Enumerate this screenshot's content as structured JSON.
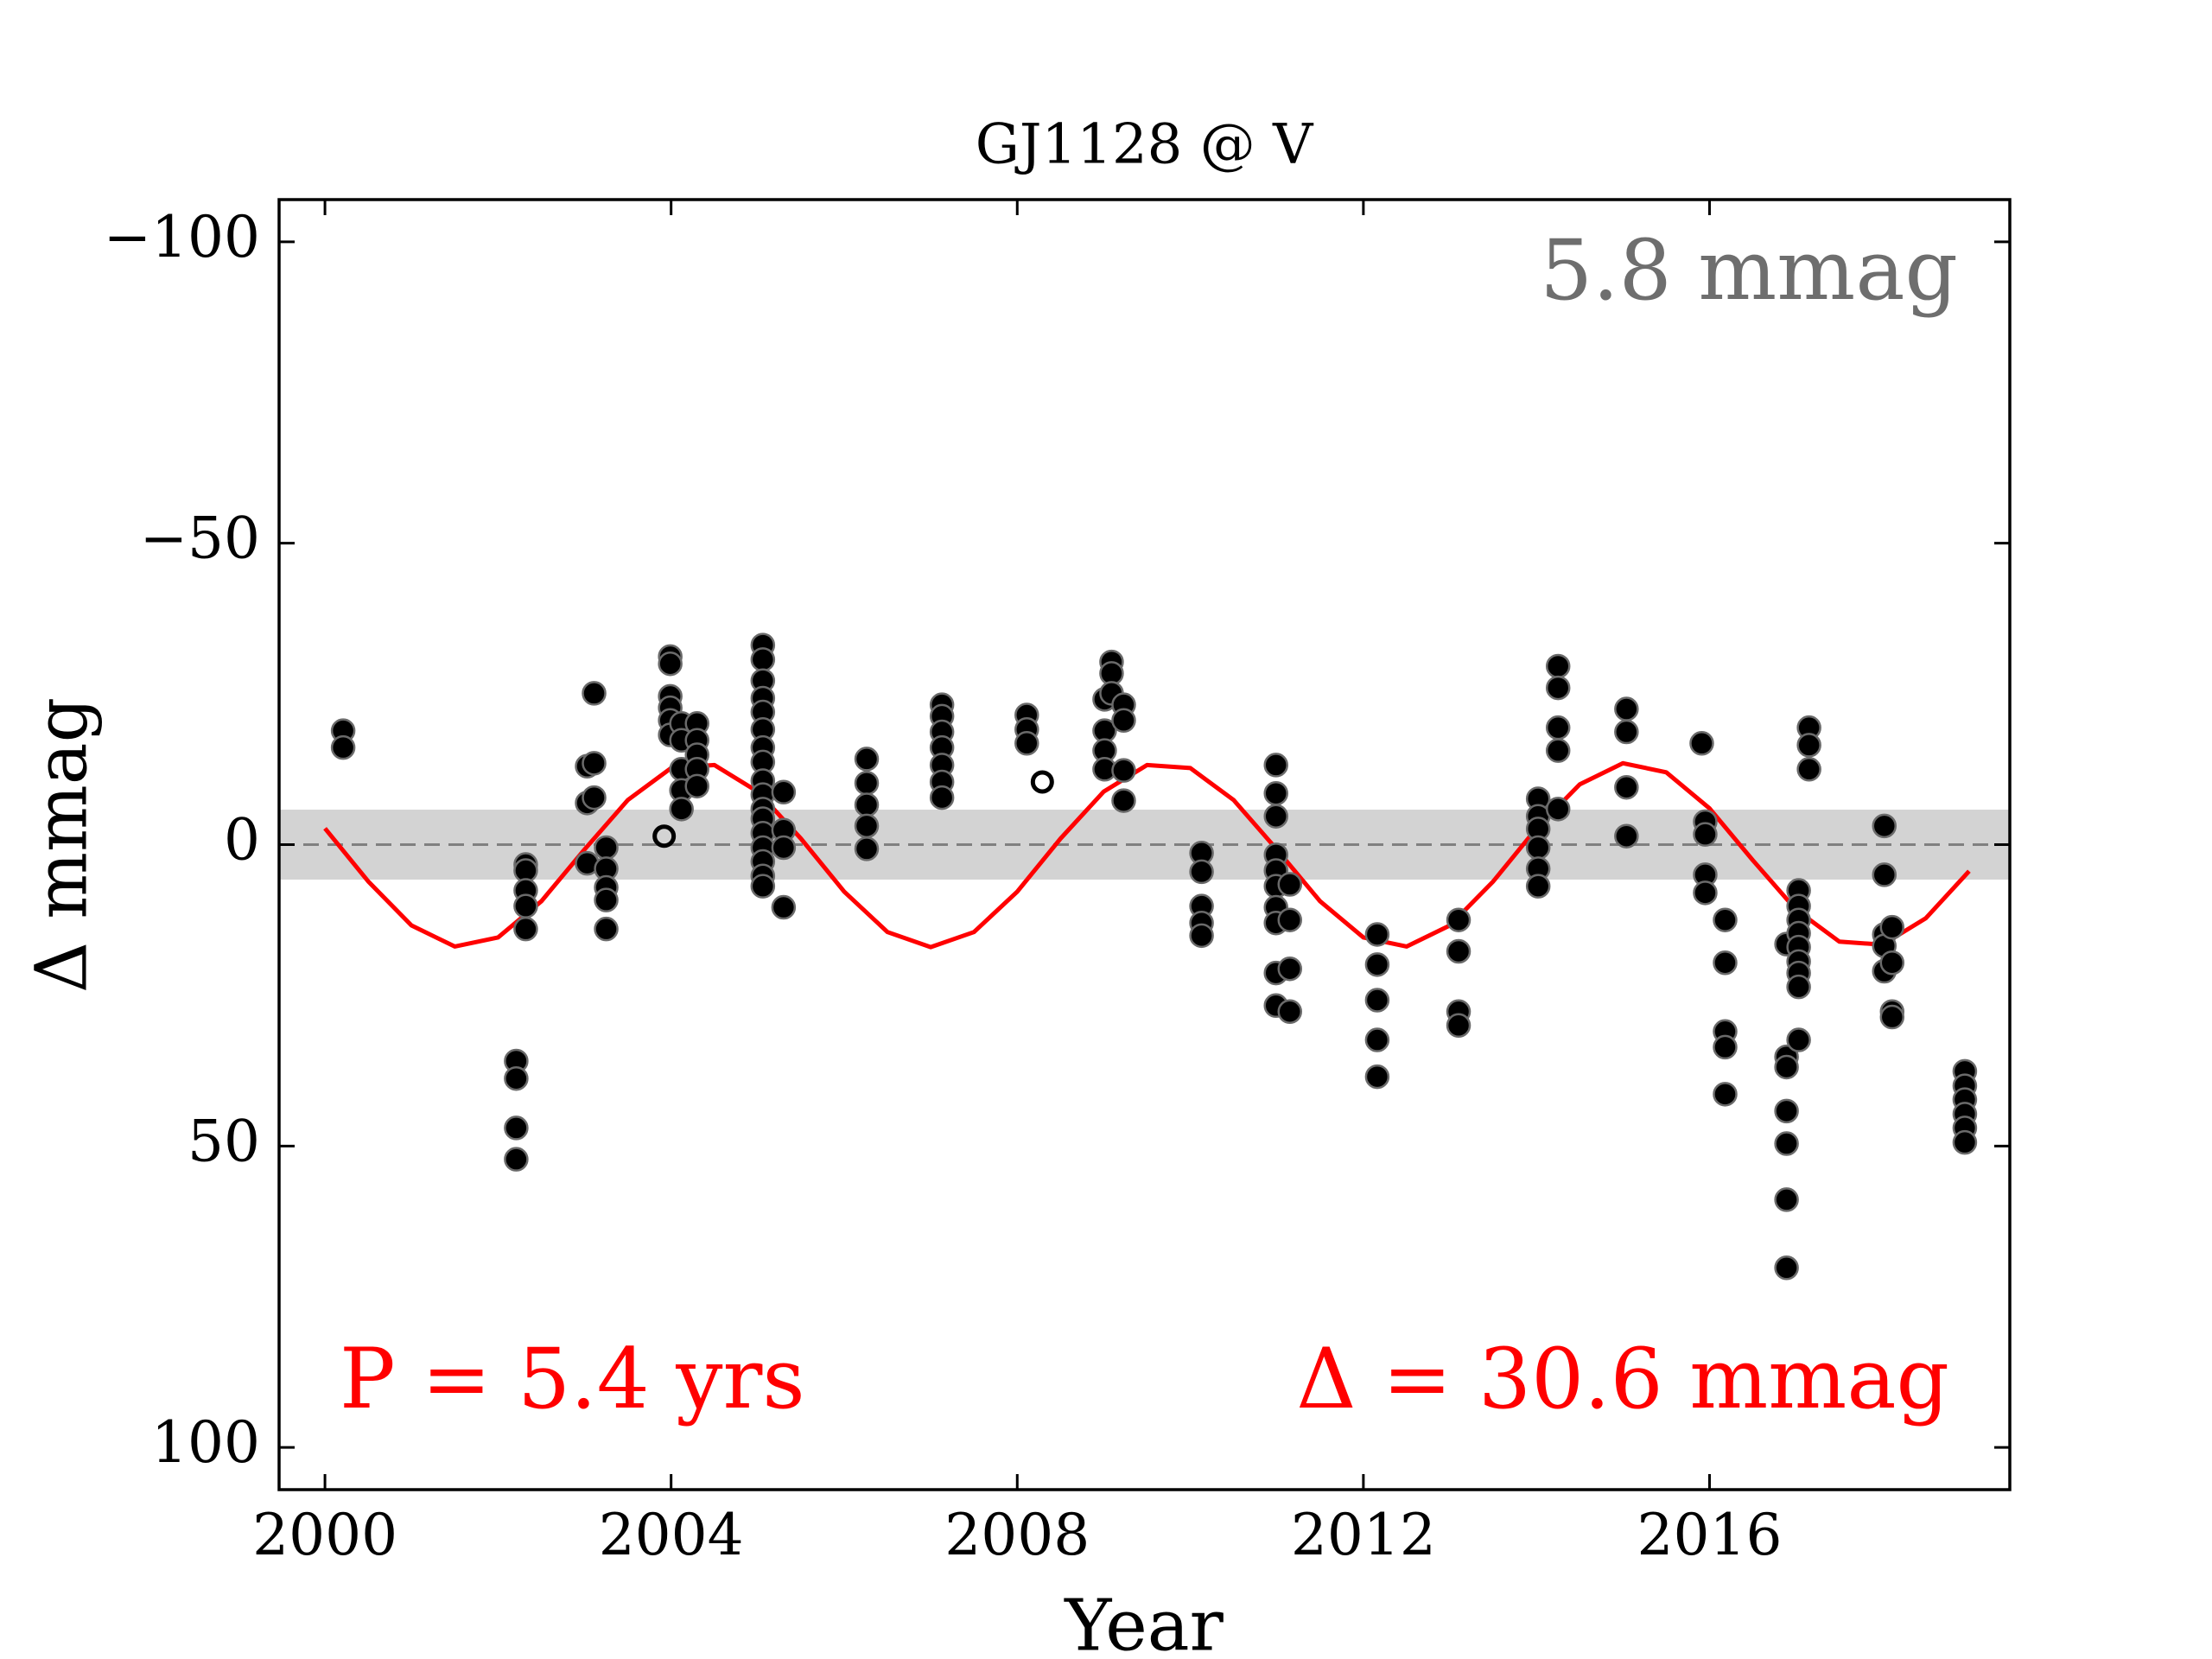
{
  "chart_data": {
    "type": "scatter",
    "title": "GJ1128 @ V",
    "xlabel": "Year",
    "ylabel": "Δ  mmag",
    "xlim": [
      1999.47,
      2019.47
    ],
    "ylim": [
      107,
      -107
    ],
    "xticks": [
      2000,
      2004,
      2008,
      2012,
      2016
    ],
    "yticks": [
      {
        "value": -100,
        "label": "−100"
      },
      {
        "value": -50,
        "label": "−50"
      },
      0,
      50,
      100
    ],
    "band": [
      -5.8,
      5.8
    ],
    "band_color": "#d3d3d3",
    "hline": 0,
    "annotations": [
      {
        "text": "5.8 mmag",
        "color": "#6e6e6e",
        "corner": "upper right"
      },
      {
        "text": "P = 5.4 yrs",
        "color": "#ff0000",
        "corner": "lower left"
      },
      {
        "text": "Δ = 30.6 mmag",
        "color": "#ff0000",
        "corner": "lower right"
      }
    ],
    "series": [
      {
        "marker": "filled",
        "color": "#000000",
        "x": [
          2000.21,
          2000.21,
          2002.21,
          2002.21,
          2002.21,
          2002.21,
          2002.32,
          2002.32,
          2002.32,
          2002.32,
          2002.32,
          2003.03,
          2003.03,
          2003.03,
          2003.11,
          2003.11,
          2003.11,
          2003.25,
          2003.25,
          2003.25,
          2003.25,
          2003.25,
          2003.99,
          2003.99,
          2003.99,
          2003.99,
          2003.99,
          2003.99,
          2004.12,
          2004.12,
          2004.12,
          2004.12,
          2004.12,
          2004.3,
          2004.3,
          2004.3,
          2004.3,
          2004.3,
          2005.06,
          2005.06,
          2005.06,
          2005.06,
          2005.06,
          2005.06,
          2005.06,
          2005.06,
          2005.06,
          2005.06,
          2005.06,
          2005.06,
          2005.06,
          2005.06,
          2005.06,
          2005.06,
          2005.06,
          2005.3,
          2005.3,
          2005.3,
          2005.3,
          2006.26,
          2006.26,
          2006.26,
          2006.26,
          2006.26,
          2007.13,
          2007.13,
          2007.13,
          2007.13,
          2007.13,
          2007.13,
          2007.13,
          2008.11,
          2008.11,
          2008.11,
          2009.01,
          2009.01,
          2009.01,
          2009.01,
          2009.09,
          2009.09,
          2009.09,
          2009.23,
          2009.23,
          2009.23,
          2009.23,
          2010.13,
          2010.13,
          2010.13,
          2010.13,
          2010.13,
          2010.99,
          2010.99,
          2010.99,
          2010.99,
          2010.99,
          2010.99,
          2010.99,
          2010.99,
          2010.99,
          2010.99,
          2011.15,
          2011.15,
          2011.15,
          2011.15,
          2012.16,
          2012.16,
          2012.16,
          2012.16,
          2012.16,
          2013.1,
          2013.1,
          2013.1,
          2013.1,
          2014.02,
          2014.02,
          2014.02,
          2014.02,
          2014.02,
          2014.02,
          2014.25,
          2014.25,
          2014.25,
          2014.25,
          2014.25,
          2015.04,
          2015.04,
          2015.04,
          2015.04,
          2015.91,
          2015.95,
          2015.95,
          2015.95,
          2015.95,
          2016.18,
          2016.18,
          2016.18,
          2016.18,
          2016.18,
          2016.89,
          2016.89,
          2016.89,
          2016.89,
          2016.89,
          2016.89,
          2016.89,
          2017.03,
          2017.03,
          2017.03,
          2017.03,
          2017.03,
          2017.03,
          2017.03,
          2017.03,
          2017.03,
          2017.15,
          2017.15,
          2017.15,
          2018.02,
          2018.02,
          2018.02,
          2018.02,
          2018.02,
          2018.11,
          2018.11,
          2018.11,
          2018.11,
          2018.95,
          2018.95,
          2018.95,
          2018.95,
          2018.95,
          2018.95
        ],
        "values": [
          -18.9,
          -16.1,
          35.9,
          38.8,
          47.0,
          52.2,
          3.3,
          4.3,
          7.6,
          10.2,
          14.0,
          -13.0,
          -6.9,
          3.1,
          -25.1,
          -13.5,
          -7.8,
          0.5,
          4.0,
          7.1,
          9.2,
          14.0,
          -31.2,
          -30.0,
          -24.6,
          -22.7,
          -20.6,
          -18.2,
          -20.1,
          -17.3,
          -12.5,
          -9.0,
          -5.9,
          -20.1,
          -17.3,
          -14.9,
          -12.5,
          -9.7,
          -33.1,
          -30.7,
          -27.2,
          -24.3,
          -22.0,
          -19.1,
          -16.1,
          -13.7,
          -10.6,
          -8.3,
          -5.9,
          -4.3,
          -1.9,
          0.5,
          2.8,
          5.2,
          6.9,
          -8.7,
          -2.4,
          0.5,
          10.4,
          -14.2,
          -10.2,
          -6.6,
          -3.1,
          0.7,
          -23.2,
          -21.3,
          -18.7,
          -16.1,
          -13.2,
          -10.4,
          -7.8,
          -21.5,
          -19.1,
          -16.8,
          -24.1,
          -18.9,
          -15.6,
          -12.5,
          -30.3,
          -28.4,
          -25.1,
          -23.2,
          -20.6,
          -12.3,
          -7.3,
          1.4,
          4.5,
          10.2,
          13.0,
          15.1,
          -13.2,
          -8.5,
          -4.7,
          1.7,
          4.3,
          6.9,
          10.4,
          13.0,
          21.3,
          26.7,
          6.6,
          12.5,
          20.6,
          27.7,
          14.9,
          19.9,
          25.8,
          32.4,
          38.5,
          12.5,
          17.7,
          27.7,
          30.0,
          -7.6,
          -4.7,
          -2.6,
          0.5,
          4.0,
          6.9,
          -29.6,
          -26.0,
          -19.4,
          -15.6,
          -5.9,
          -22.5,
          -18.7,
          -9.5,
          -1.4,
          -16.8,
          -3.8,
          -1.7,
          5.0,
          8.0,
          12.5,
          19.6,
          31.0,
          33.6,
          41.4,
          16.5,
          35.2,
          36.9,
          44.2,
          49.6,
          58.9,
          70.2,
          7.6,
          10.2,
          12.5,
          14.7,
          17.0,
          19.4,
          21.3,
          23.6,
          32.4,
          -19.4,
          -16.5,
          -12.5,
          -3.1,
          5.0,
          14.9,
          16.8,
          21.0,
          13.7,
          19.6,
          27.7,
          28.6,
          37.6,
          40.0,
          42.3,
          44.7,
          47.0,
          49.4
        ]
      },
      {
        "marker": "open",
        "color": "#000000",
        "x": [
          2003.92,
          2008.29
        ],
        "values": [
          -1.4,
          -10.4
        ]
      }
    ],
    "fit": {
      "color": "#ff0000",
      "x": [
        2000,
        2000.5,
        2001,
        2001.5,
        2002,
        2002.5,
        2003,
        2003.5,
        2004,
        2004.5,
        2005,
        2005.5,
        2006,
        2006.5,
        2007,
        2007.5,
        2008,
        2008.5,
        2009,
        2009.5,
        2010,
        2010.5,
        2011,
        2011.5,
        2012,
        2012.5,
        2013,
        2013.5,
        2014,
        2014.5,
        2015,
        2015.5,
        2016,
        2016.5,
        2017,
        2017.5,
        2018,
        2018.5,
        2019
      ],
      "values": [
        -2.7,
        6.1,
        13.4,
        16.9,
        15.4,
        9.4,
        0.8,
        -7.4,
        -12.7,
        -13.2,
        -8.8,
        -1.0,
        7.8,
        14.5,
        17.0,
        14.5,
        7.8,
        -1.0,
        -8.8,
        -13.2,
        -12.7,
        -7.4,
        0.8,
        9.4,
        15.4,
        16.9,
        13.4,
        6.1,
        -2.7,
        -10.0,
        -13.5,
        -12.0,
        -6.0,
        2.6,
        10.8,
        16.1,
        16.6,
        12.2,
        4.4
      ]
    }
  }
}
